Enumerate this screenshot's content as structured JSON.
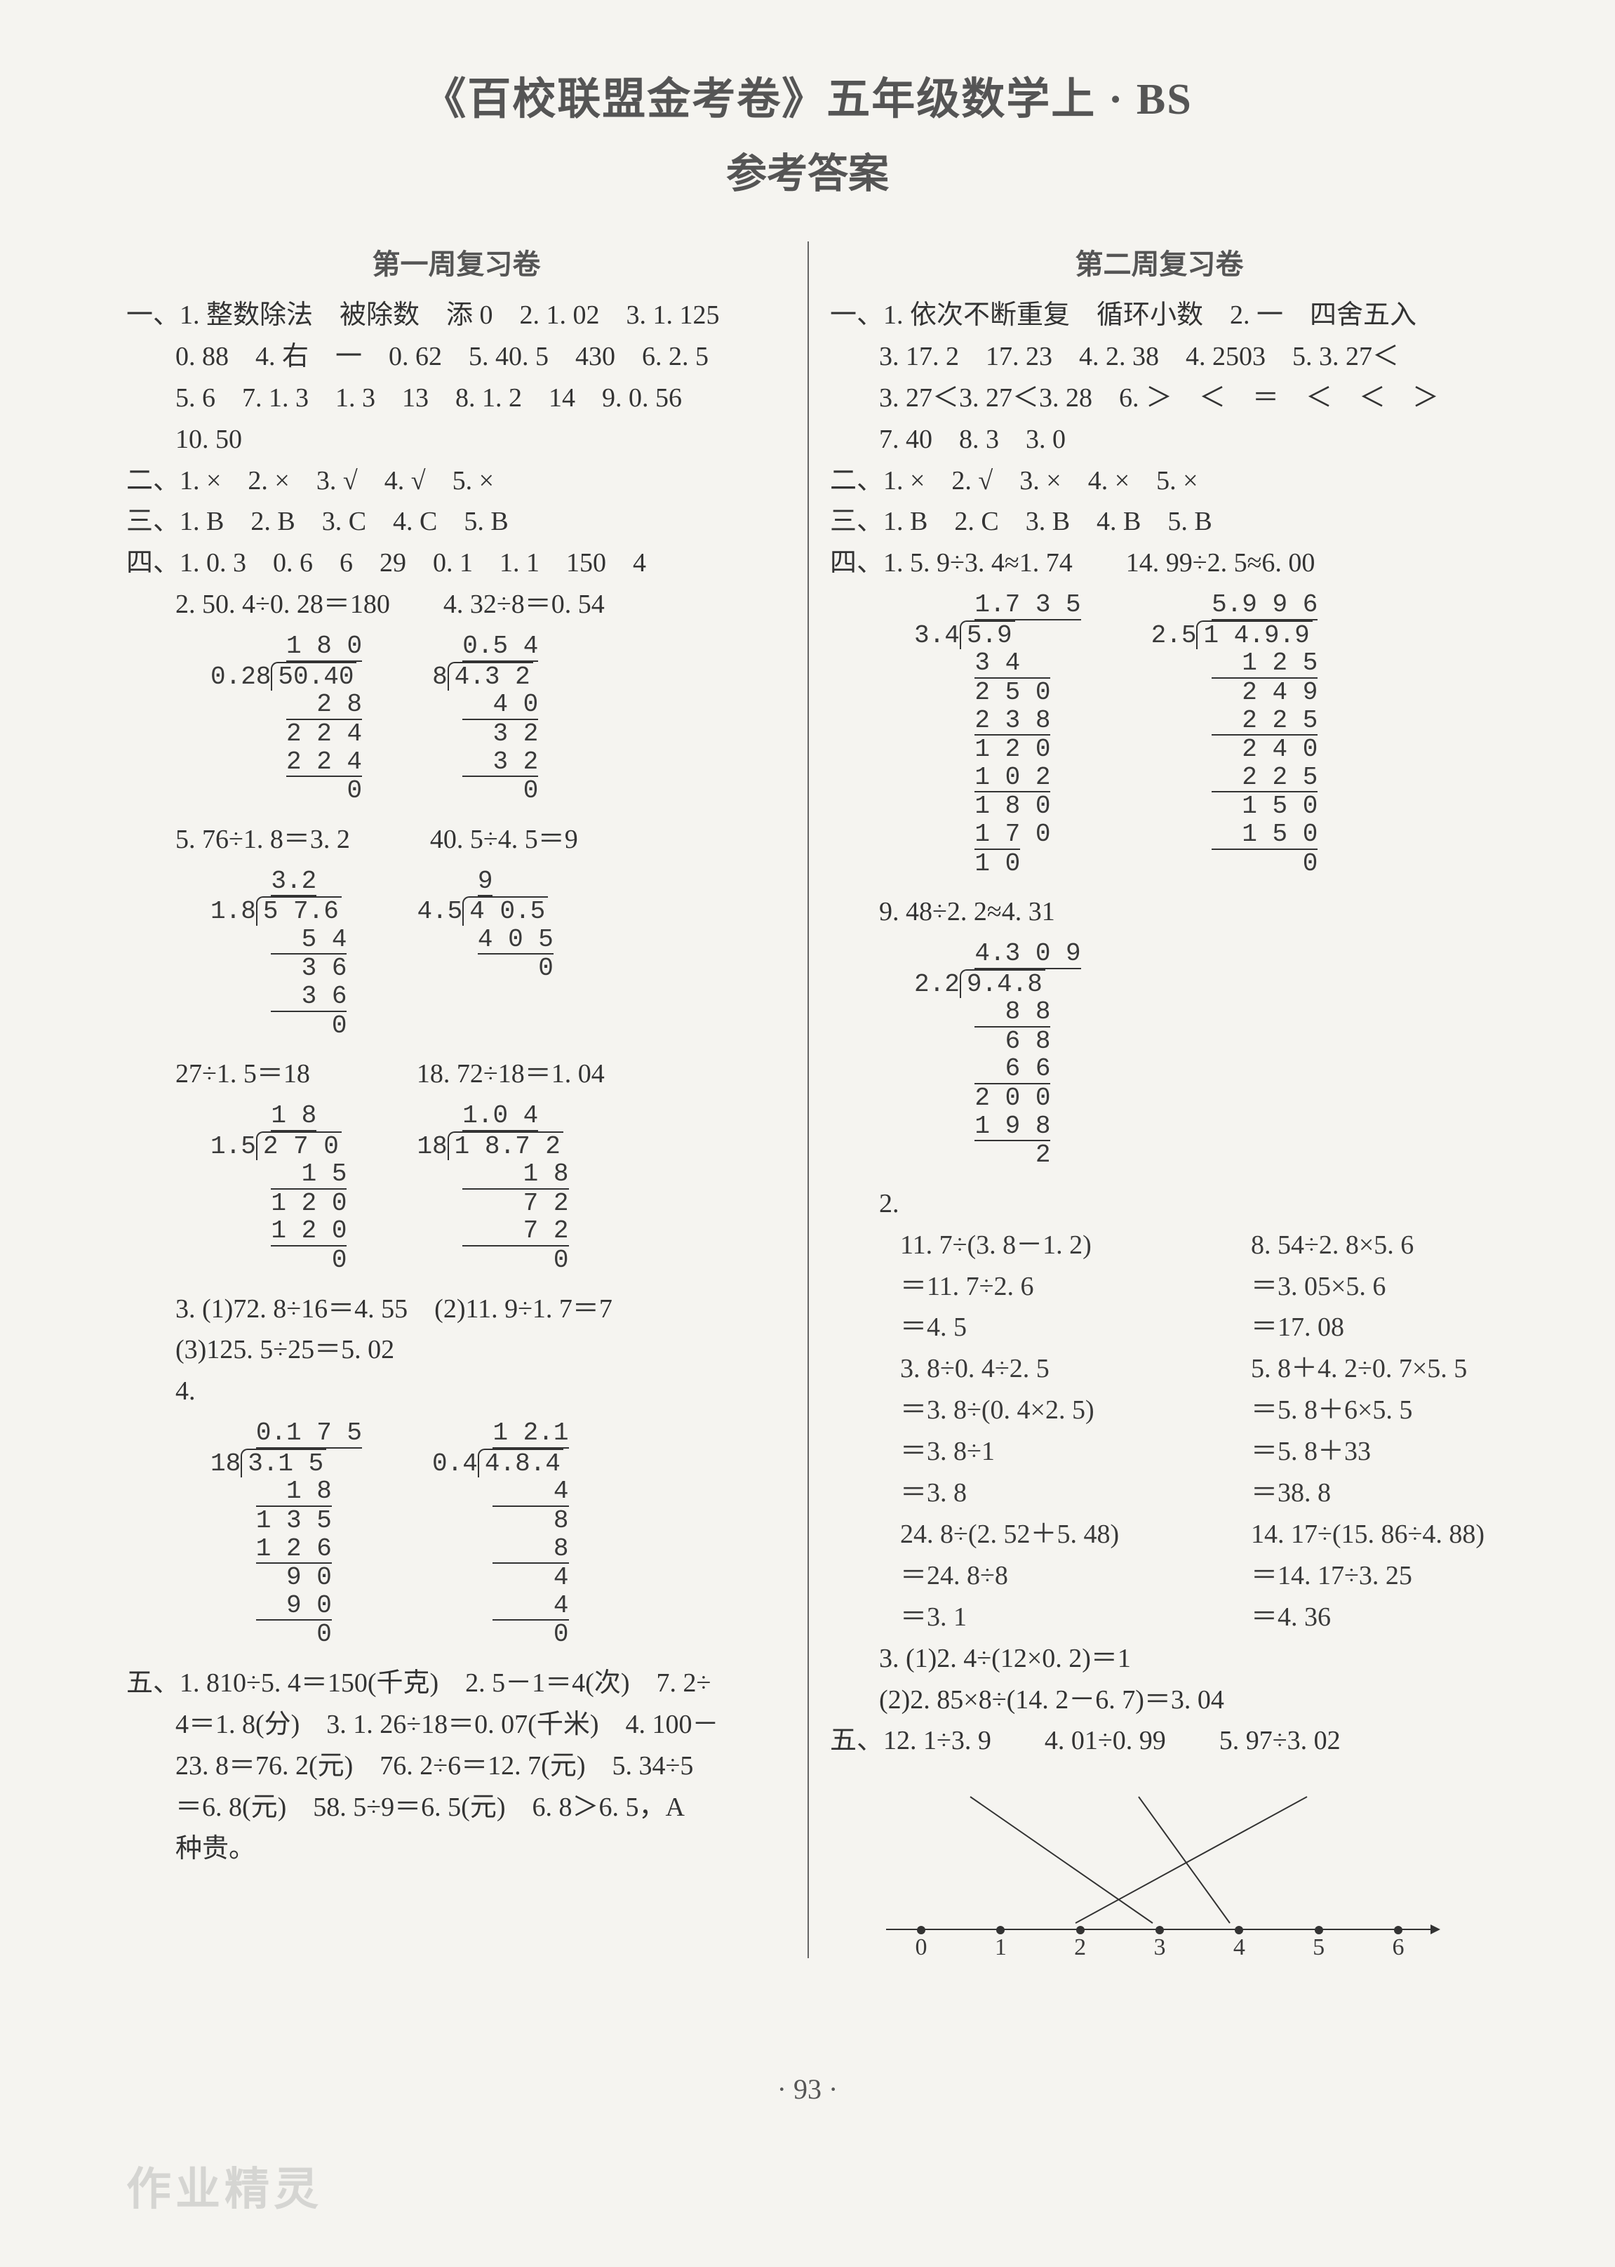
{
  "title": "《百校联盟金考卷》五年级数学上 · BS",
  "subtitle": "参考答案",
  "left": {
    "header": "第一周复习卷",
    "l1a": "一、1. 整数除法　被除数　添 0　2. 1. 02　3. 1. 125",
    "l1b": "0. 88　4. 右　一　0. 62　5. 40. 5　430　6. 2. 5",
    "l1c": "5. 6　7. 1. 3　1. 3　13　8. 1. 2　14　9. 0. 56",
    "l1d": "10. 50",
    "l2": "二、1. ×　2. ×　3. √　4. √　5. ×",
    "l3": "三、1. B　2. B　3. C　4. C　5. B",
    "l4a": "四、1. 0. 3　0. 6　6　29　0. 1　1. 1　150　4",
    "l4b": "2. 50. 4÷0. 28＝180　　4. 32÷8＝0. 54",
    "ld1a": {
      "divisor": "0.28",
      "dividend": "50.40",
      "quotient": "1 8 0",
      "steps": [
        "2 8",
        "2 2 4",
        "2 2 4",
        "0"
      ]
    },
    "ld1b": {
      "divisor": "8",
      "dividend": "4.3 2",
      "quotient": "0.5 4",
      "steps": [
        "4 0",
        "3 2",
        "3 2",
        "0"
      ]
    },
    "l4c": "5. 76÷1. 8＝3. 2　　　40. 5÷4. 5＝9",
    "ld2a": {
      "divisor": "1.8",
      "dividend": "5 7.6",
      "quotient": "3.2",
      "steps": [
        "5 4",
        "3 6",
        "3 6",
        "0"
      ]
    },
    "ld2b": {
      "divisor": "4.5",
      "dividend": "4 0.5",
      "quotient": "9",
      "steps": [
        "4 0 5",
        "0"
      ]
    },
    "l4d": "27÷1. 5＝18　　　　18. 72÷18＝1. 04",
    "ld3a": {
      "divisor": "1.5",
      "dividend": "2 7 0",
      "quotient": "1 8",
      "steps": [
        "1 5",
        "1 2 0",
        "1 2 0",
        "0"
      ]
    },
    "ld3b": {
      "divisor": "18",
      "dividend": "1 8.7 2",
      "quotient": "1.0 4",
      "steps": [
        "1 8",
        "7 2",
        "7 2",
        "0"
      ]
    },
    "l4e": "3. (1)72. 8÷16＝4. 55　(2)11. 9÷1. 7＝7",
    "l4f": "(3)125. 5÷25＝5. 02",
    "l4g": "4.",
    "ld4a": {
      "divisor": "18",
      "dividend": "3.1 5",
      "quotient": "0.1 7 5",
      "steps": [
        "1 8",
        "1 3 5",
        "1 2 6",
        "9 0",
        "9 0",
        "0"
      ]
    },
    "ld4b": {
      "divisor": "0.4",
      "dividend": "4.8.4",
      "quotient": "1 2.1",
      "steps": [
        "4",
        "8",
        "8",
        "4",
        "4",
        "0"
      ]
    },
    "l5a": "五、1. 810÷5. 4＝150(千克)　2. 5－1＝4(次)　7. 2÷",
    "l5b": "4＝1. 8(分)　3. 1. 26÷18＝0. 07(千米)　4. 100－",
    "l5c": "23. 8＝76. 2(元)　76. 2÷6＝12. 7(元)　5. 34÷5",
    "l5d": "＝6. 8(元)　58. 5÷9＝6. 5(元)　6. 8＞6. 5，A",
    "l5e": "种贵。"
  },
  "right": {
    "header": "第二周复习卷",
    "r1a": "一、1. 依次不断重复　循环小数　2. 一　四舍五入",
    "r1b": "3. 17. 2　17. 23　4. 2. 38　4. 2503　5. 3. 27＜",
    "r1c": "3. 27＜3. 27＜3. 28　6. ＞　＜　＝　＜　＜　＞",
    "r1d": "7. 40　8. 3　3. 0",
    "r2": "二、1. ×　2. √　3. ×　4. ×　5. ×",
    "r3": "三、1. B　2. C　3. B　4. B　5. B",
    "r4a": "四、1. 5. 9÷3. 4≈1. 74　　14. 99÷2. 5≈6. 00",
    "ld1a": {
      "divisor": "3.4",
      "dividend": "5.9",
      "quotient": "1.7 3 5",
      "steps": [
        "3 4",
        "2 5 0",
        "2 3 8",
        "1 2 0",
        "1 0 2",
        "1 8 0",
        "1 7 0",
        "1 0"
      ]
    },
    "ld1b": {
      "divisor": "2.5",
      "dividend": "1 4.9.9",
      "quotient": "5.9 9 6",
      "steps": [
        "1 2 5",
        "2 4 9",
        "2 2 5",
        "2 4 0",
        "2 2 5",
        "1 5 0",
        "1 5 0",
        "0"
      ]
    },
    "r4b": "9. 48÷2. 2≈4. 31",
    "ld2": {
      "divisor": "2.2",
      "dividend": "9.4.8",
      "quotient": "4.3 0 9",
      "steps": [
        "8 8",
        "6 8",
        "6 6",
        "2 0 0",
        "1 9 8",
        "2"
      ]
    },
    "r4c": "2.",
    "eq1": {
      "a": [
        "11. 7÷(3. 8－1. 2)",
        "＝11. 7÷2. 6",
        "＝4. 5"
      ],
      "b": [
        "8. 54÷2. 8×5. 6",
        "＝3. 05×5. 6",
        "＝17. 08"
      ]
    },
    "eq2": {
      "a": [
        "3. 8÷0. 4÷2. 5",
        "＝3. 8÷(0. 4×2. 5)",
        "＝3. 8÷1",
        "＝3. 8"
      ],
      "b": [
        "5. 8＋4. 2÷0. 7×5. 5",
        "＝5. 8＋6×5. 5",
        "＝5. 8＋33",
        "＝38. 8"
      ]
    },
    "eq3": {
      "a": [
        "24. 8÷(2. 52＋5. 48)",
        "＝24. 8÷8",
        "＝3. 1"
      ],
      "b": [
        "14. 17÷(15. 86÷4. 88)",
        "＝14. 17÷3. 25",
        "＝4. 36"
      ]
    },
    "r4d": "3. (1)2. 4÷(12×0. 2)＝1",
    "r4e": "(2)2. 85×8÷(14. 2－6. 7)＝3. 04",
    "r5a": "五、12. 1÷3. 9　　4. 01÷0. 99　　5. 97÷3. 02",
    "numline": {
      "labels": [
        "0",
        "1",
        "2",
        "3",
        "4",
        "5",
        "6"
      ]
    }
  },
  "pageNum": "· 93 ·",
  "watermark": "作业精灵"
}
